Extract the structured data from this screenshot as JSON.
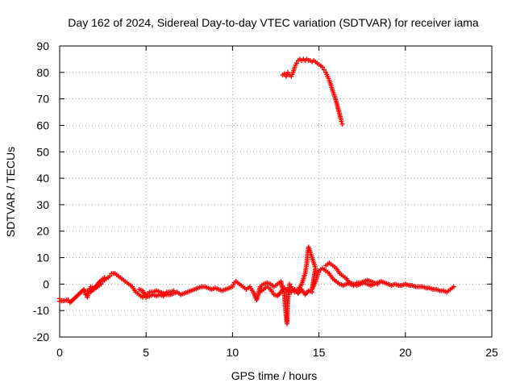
{
  "chart_data": {
    "type": "scatter",
    "title": "Day 162 of 2024, Sidereal Day-to-day VTEC variation (SDTVAR) for receiver iama",
    "xlabel": "GPS time / hours",
    "ylabel": "SDTVAR / TECUs",
    "xlim": [
      0,
      25
    ],
    "ylim": [
      -20,
      90
    ],
    "xticks": [
      0,
      5,
      10,
      15,
      20,
      25
    ],
    "yticks": [
      -20,
      -10,
      0,
      10,
      20,
      30,
      40,
      50,
      60,
      70,
      80,
      90
    ],
    "grid": true,
    "marker": "+",
    "color": "#ff0000",
    "series": [
      {
        "name": "lower track",
        "points": [
          [
            0.0,
            -5.5
          ],
          [
            0.0,
            -6.5
          ],
          [
            0.5,
            -6
          ],
          [
            0.6,
            -7
          ],
          [
            1.4,
            -2
          ],
          [
            1.5,
            -4
          ],
          [
            1.6,
            -5
          ],
          [
            1.8,
            -1
          ],
          [
            2.0,
            -2
          ],
          [
            2.2,
            -1
          ],
          [
            2.4,
            0
          ],
          [
            2.5,
            1
          ],
          [
            2.7,
            2
          ],
          [
            2.9,
            3
          ],
          [
            3.0,
            4
          ],
          [
            3.2,
            4
          ],
          [
            3.4,
            3
          ],
          [
            3.6,
            2
          ],
          [
            3.8,
            1
          ],
          [
            4.0,
            0
          ],
          [
            4.2,
            -1
          ],
          [
            4.4,
            -3
          ],
          [
            4.6,
            -4
          ],
          [
            4.8,
            -5
          ],
          [
            5.0,
            -4
          ],
          [
            5.2,
            -3
          ],
          [
            5.4,
            -3
          ],
          [
            5.6,
            -2.5
          ],
          [
            5.8,
            -3
          ],
          [
            6.0,
            -3.5
          ],
          [
            6.2,
            -4
          ],
          [
            6.4,
            -4
          ],
          [
            6.6,
            -3.5
          ],
          [
            6.8,
            -3
          ],
          [
            7.0,
            -4
          ],
          [
            7.2,
            -3.5
          ],
          [
            7.4,
            -3
          ],
          [
            7.6,
            -2.5
          ],
          [
            7.8,
            -2
          ],
          [
            8.0,
            -1.5
          ],
          [
            8.2,
            -1
          ],
          [
            8.4,
            -1
          ],
          [
            8.6,
            -1.5
          ],
          [
            8.8,
            -2
          ],
          [
            9.0,
            -1.5
          ],
          [
            9.2,
            -2
          ],
          [
            9.4,
            -2.5
          ],
          [
            9.6,
            -2
          ],
          [
            9.8,
            -1.5
          ],
          [
            10.0,
            -1
          ],
          [
            10.1,
            0.5
          ],
          [
            10.2,
            1
          ],
          [
            10.4,
            0
          ],
          [
            10.6,
            -1
          ],
          [
            10.8,
            -2
          ],
          [
            11.0,
            -1
          ],
          [
            11.2,
            -3
          ],
          [
            11.4,
            -6
          ],
          [
            11.6,
            -1
          ],
          [
            11.8,
            0
          ],
          [
            12.0,
            0.5
          ],
          [
            12.2,
            0
          ],
          [
            12.4,
            -1
          ],
          [
            12.6,
            0
          ],
          [
            12.8,
            1
          ],
          [
            12.9,
            -2
          ],
          [
            13.0,
            -3
          ],
          [
            13.05,
            -8
          ],
          [
            13.1,
            -12
          ],
          [
            13.15,
            -15
          ],
          [
            13.2,
            -6
          ],
          [
            13.3,
            0
          ],
          [
            13.4,
            -1
          ],
          [
            13.6,
            -3
          ],
          [
            13.8,
            -2
          ],
          [
            14.0,
            0
          ],
          [
            14.1,
            2
          ],
          [
            14.2,
            4
          ],
          [
            14.3,
            8
          ],
          [
            14.35,
            12
          ],
          [
            14.4,
            14
          ],
          [
            14.5,
            12
          ],
          [
            14.6,
            10
          ],
          [
            14.7,
            8
          ],
          [
            14.8,
            6
          ],
          [
            14.6,
            -2
          ],
          [
            14.8,
            1
          ],
          [
            15.0,
            5
          ],
          [
            15.2,
            6
          ],
          [
            15.4,
            5
          ],
          [
            15.6,
            4
          ],
          [
            15.8,
            2
          ],
          [
            16.0,
            1
          ],
          [
            16.2,
            0
          ],
          [
            16.4,
            -0.5
          ],
          [
            16.6,
            0
          ],
          [
            16.8,
            0.5
          ],
          [
            17.0,
            0
          ],
          [
            17.2,
            -0.5
          ],
          [
            17.4,
            0
          ],
          [
            17.6,
            0.5
          ],
          [
            17.8,
            0
          ],
          [
            18.0,
            -0.5
          ],
          [
            18.2,
            0
          ],
          [
            18.4,
            0.5
          ],
          [
            18.6,
            1
          ],
          [
            18.8,
            0.5
          ],
          [
            19.0,
            0
          ],
          [
            19.2,
            -0.5
          ],
          [
            19.4,
            0
          ],
          [
            19.6,
            -0.5
          ],
          [
            19.8,
            -0.5
          ],
          [
            20.0,
            0
          ],
          [
            20.2,
            -0.5
          ],
          [
            20.4,
            -0.5
          ],
          [
            20.6,
            -1
          ],
          [
            20.8,
            -1
          ],
          [
            21.0,
            -1
          ],
          [
            21.2,
            -1.5
          ],
          [
            21.4,
            -1.5
          ],
          [
            21.6,
            -2
          ],
          [
            21.8,
            -2
          ],
          [
            22.0,
            -2.5
          ],
          [
            22.2,
            -2.5
          ],
          [
            22.4,
            -3
          ],
          [
            22.6,
            -2
          ],
          [
            22.8,
            -1
          ]
        ]
      },
      {
        "name": "secondary track",
        "points": [
          [
            15.4,
            7
          ],
          [
            15.6,
            8
          ],
          [
            15.8,
            7
          ],
          [
            16.0,
            6
          ],
          [
            16.2,
            4
          ],
          [
            16.4,
            3
          ],
          [
            16.6,
            2
          ],
          [
            16.8,
            0
          ],
          [
            17.0,
            -0.5
          ],
          [
            17.2,
            0.5
          ],
          [
            17.4,
            0.5
          ],
          [
            17.6,
            1
          ],
          [
            17.8,
            1.5
          ],
          [
            18.0,
            1
          ],
          [
            18.2,
            0.5
          ],
          [
            18.4,
            0
          ],
          [
            11.6,
            -3
          ],
          [
            11.8,
            -2
          ],
          [
            12.0,
            -1
          ],
          [
            12.2,
            -2
          ],
          [
            12.4,
            -4
          ],
          [
            12.6,
            -4.5
          ],
          [
            12.8,
            -3
          ],
          [
            13.0,
            -1.5
          ],
          [
            13.2,
            -2.5
          ],
          [
            13.4,
            -3
          ],
          [
            13.6,
            -2
          ],
          [
            13.8,
            -3.5
          ],
          [
            14.0,
            -2
          ],
          [
            14.2,
            -4
          ],
          [
            14.4,
            -2.5
          ],
          [
            14.6,
            -3
          ],
          [
            1.6,
            -2.5
          ],
          [
            1.8,
            -3
          ],
          [
            2.0,
            -1.5
          ],
          [
            2.2,
            0
          ],
          [
            2.4,
            1.5
          ],
          [
            2.6,
            2.5
          ],
          [
            4.6,
            -2
          ],
          [
            4.8,
            -2.5
          ],
          [
            5.0,
            -5
          ],
          [
            5.2,
            -4.5
          ],
          [
            5.4,
            -4
          ],
          [
            5.6,
            -4.5
          ],
          [
            5.8,
            -4
          ],
          [
            6.0,
            -4.5
          ],
          [
            6.2,
            -3
          ],
          [
            6.4,
            -3
          ],
          [
            6.6,
            -2.5
          ]
        ]
      },
      {
        "name": "upper track",
        "points": [
          [
            12.9,
            79
          ],
          [
            13.0,
            79.5
          ],
          [
            13.1,
            78.5
          ],
          [
            13.2,
            80
          ],
          [
            13.3,
            79
          ],
          [
            13.4,
            78.5
          ],
          [
            13.5,
            80
          ],
          [
            13.6,
            82
          ],
          [
            13.7,
            83.5
          ],
          [
            13.8,
            84.5
          ],
          [
            13.9,
            85
          ],
          [
            14.0,
            84.5
          ],
          [
            14.1,
            85
          ],
          [
            14.2,
            84.5
          ],
          [
            14.3,
            85
          ],
          [
            14.4,
            84.5
          ],
          [
            14.5,
            84.5
          ],
          [
            14.6,
            84
          ],
          [
            14.7,
            84.5
          ],
          [
            14.8,
            84
          ],
          [
            14.9,
            83.5
          ],
          [
            15.0,
            83
          ],
          [
            15.1,
            82.5
          ],
          [
            15.2,
            82
          ],
          [
            15.3,
            81
          ],
          [
            15.4,
            80
          ],
          [
            15.5,
            78.5
          ],
          [
            15.6,
            77
          ],
          [
            15.7,
            75
          ],
          [
            15.8,
            73
          ],
          [
            15.9,
            71
          ],
          [
            16.0,
            69
          ],
          [
            16.1,
            66.5
          ],
          [
            16.2,
            64
          ],
          [
            16.3,
            61.5
          ],
          [
            16.35,
            60.5
          ]
        ]
      }
    ]
  }
}
